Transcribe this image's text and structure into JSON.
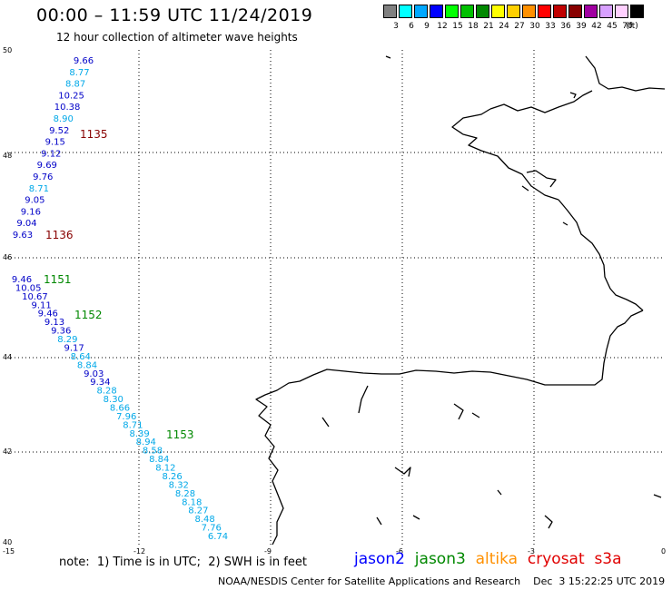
{
  "header": {
    "title": "00:00 – 11:59 UTC 11/24/2019",
    "subtitle": "12 hour collection of altimeter wave heights"
  },
  "legend": {
    "unit": "(ft)",
    "bins": [
      {
        "label": "3",
        "color": "#808080"
      },
      {
        "label": "6",
        "color": "#00ffff"
      },
      {
        "label": "9",
        "color": "#00a8ff"
      },
      {
        "label": "12",
        "color": "#0000ff"
      },
      {
        "label": "15",
        "color": "#00ff00"
      },
      {
        "label": "18",
        "color": "#00c000"
      },
      {
        "label": "21",
        "color": "#008800"
      },
      {
        "label": "24",
        "color": "#ffff00"
      },
      {
        "label": "27",
        "color": "#ffd000"
      },
      {
        "label": "30",
        "color": "#ff9000"
      },
      {
        "label": "33",
        "color": "#ff0000"
      },
      {
        "label": "36",
        "color": "#c00000"
      },
      {
        "label": "39",
        "color": "#880000"
      },
      {
        "label": "42",
        "color": "#a000a0"
      },
      {
        "label": "45",
        "color": "#d8a0ff"
      },
      {
        "label": "70",
        "color": "#ffd0ff"
      },
      {
        "label": "",
        "color": "#000000"
      }
    ]
  },
  "axes": {
    "lat_labels": [
      "50",
      "48",
      "46",
      "44",
      "42",
      "40"
    ],
    "lon_labels": [
      "-15",
      "-12",
      "-9",
      "-6",
      "-3",
      "0"
    ]
  },
  "wave_heights": {
    "segments": [
      {
        "points": [
          {
            "v": "9.66",
            "c": "#0000c8"
          },
          {
            "v": "8.77",
            "c": "#00a8e8"
          },
          {
            "v": "8.87",
            "c": "#00a8e8"
          },
          {
            "v": "10.25",
            "c": "#0000c8"
          },
          {
            "v": "10.38",
            "c": "#0000c8"
          },
          {
            "v": "8.90",
            "c": "#00a8e8"
          },
          {
            "v": "9.52",
            "c": "#0000c8"
          },
          {
            "v": "9.15",
            "c": "#0000c8"
          },
          {
            "v": "9.12",
            "c": "#0000c8"
          },
          {
            "v": "9.69",
            "c": "#0000c8"
          },
          {
            "v": "9.76",
            "c": "#0000c8"
          },
          {
            "v": "8.71",
            "c": "#00a8e8"
          },
          {
            "v": "9.05",
            "c": "#0000c8"
          },
          {
            "v": "9.16",
            "c": "#0000c8"
          },
          {
            "v": "9.04",
            "c": "#0000c8"
          },
          {
            "v": "9.63",
            "c": "#0000c8"
          }
        ]
      },
      {
        "points": [
          {
            "v": "9.46",
            "c": "#0000c8"
          },
          {
            "v": "10.05",
            "c": "#0000c8"
          },
          {
            "v": "10.67",
            "c": "#0000c8"
          },
          {
            "v": "9.11",
            "c": "#0000c8"
          },
          {
            "v": "9.46",
            "c": "#0000c8"
          },
          {
            "v": "9.13",
            "c": "#0000c8"
          },
          {
            "v": "9.36",
            "c": "#0000c8"
          },
          {
            "v": "8.29",
            "c": "#00a8e8"
          },
          {
            "v": "9.17",
            "c": "#0000c8"
          },
          {
            "v": "8.64",
            "c": "#00a8e8"
          },
          {
            "v": "8.84",
            "c": "#00a8e8"
          },
          {
            "v": "9.03",
            "c": "#0000c8"
          },
          {
            "v": "9.34",
            "c": "#0000c8"
          },
          {
            "v": "8.28",
            "c": "#00a8e8"
          },
          {
            "v": "8.30",
            "c": "#00a8e8"
          },
          {
            "v": "8.66",
            "c": "#00a8e8"
          },
          {
            "v": "7.96",
            "c": "#00a8e8"
          },
          {
            "v": "8.71",
            "c": "#00a8e8"
          },
          {
            "v": "8.39",
            "c": "#00a8e8"
          },
          {
            "v": "8.94",
            "c": "#00a8e8"
          },
          {
            "v": "8.58",
            "c": "#00a8e8"
          },
          {
            "v": "8.84",
            "c": "#00a8e8"
          },
          {
            "v": "8.12",
            "c": "#00a8e8"
          },
          {
            "v": "8.26",
            "c": "#00a8e8"
          },
          {
            "v": "8.32",
            "c": "#00a8e8"
          },
          {
            "v": "8.28",
            "c": "#00a8e8"
          },
          {
            "v": "8.18",
            "c": "#00a8e8"
          },
          {
            "v": "8.27",
            "c": "#00a8e8"
          },
          {
            "v": "8.48",
            "c": "#00a8e8"
          },
          {
            "v": "7.76",
            "c": "#00a8e8"
          },
          {
            "v": "6.74",
            "c": "#00a8e8"
          }
        ]
      }
    ],
    "pass_times": [
      {
        "v": "1135",
        "c": "#880000"
      },
      {
        "v": "1136",
        "c": "#880000"
      },
      {
        "v": "1151",
        "c": "#008800"
      },
      {
        "v": "1152",
        "c": "#008800"
      },
      {
        "v": "1153",
        "c": "#008800"
      }
    ]
  },
  "footer": {
    "note": "note:  1) Time is in UTC;  2) SWH is in feet",
    "satellites": [
      {
        "name": "jason2",
        "color": "#0000ff"
      },
      {
        "name": "jason3",
        "color": "#008800"
      },
      {
        "name": "altika",
        "color": "#ff9000"
      },
      {
        "name": "cryosat",
        "color": "#e00000"
      },
      {
        "name": "s3a",
        "color": "#e00000"
      }
    ],
    "credit": "NOAA/NESDIS Center for Satellite Applications and Research    Dec  3 15:22:25 UTC 2019"
  }
}
